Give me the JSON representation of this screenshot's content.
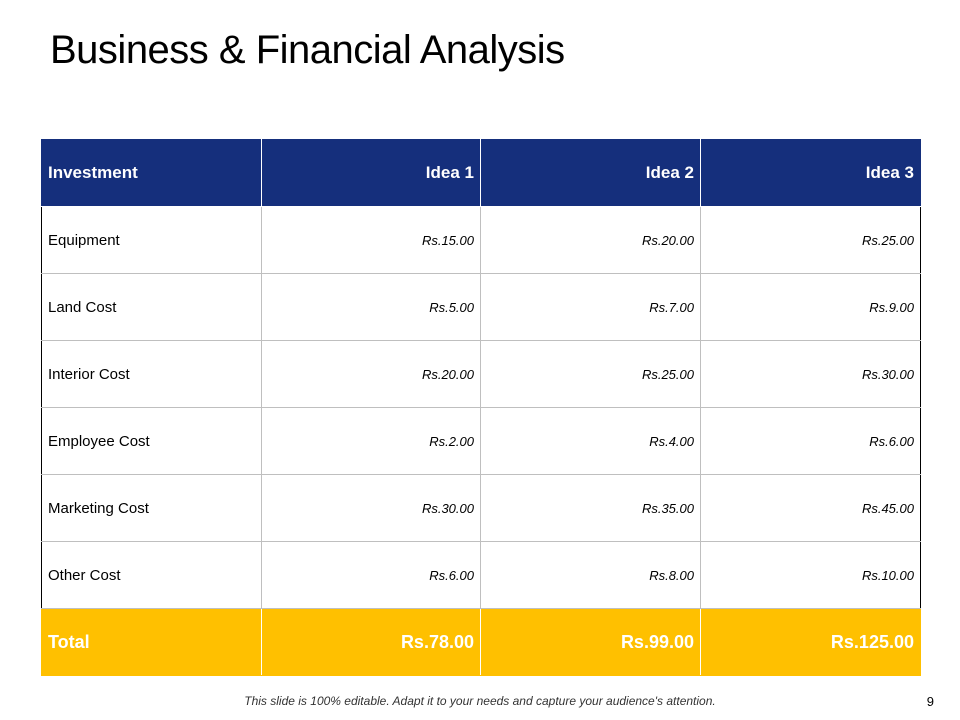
{
  "slide": {
    "title": "Business & Financial Analysis",
    "footer_note": "This slide is 100% editable. Adapt it to your needs and capture your audience's attention.",
    "page_number": "9"
  },
  "table": {
    "headers": [
      "Investment",
      "Idea 1",
      "Idea 2",
      "Idea 3"
    ],
    "rows": [
      {
        "label": "Equipment",
        "values": [
          "Rs.15.00",
          "Rs.20.00",
          "Rs.25.00"
        ]
      },
      {
        "label": "Land Cost",
        "values": [
          "Rs.5.00",
          "Rs.7.00",
          "Rs.9.00"
        ]
      },
      {
        "label": "Interior Cost",
        "values": [
          "Rs.20.00",
          "Rs.25.00",
          "Rs.30.00"
        ]
      },
      {
        "label": "Employee Cost",
        "values": [
          "Rs.2.00",
          "Rs.4.00",
          "Rs.6.00"
        ]
      },
      {
        "label": "Marketing Cost",
        "values": [
          "Rs.30.00",
          "Rs.35.00",
          "Rs.45.00"
        ]
      },
      {
        "label": "Other Cost",
        "values": [
          "Rs.6.00",
          "Rs.8.00",
          "Rs.10.00"
        ]
      }
    ],
    "total": {
      "label": "Total",
      "values": [
        "Rs.78.00",
        "Rs.99.00",
        "Rs.125.00"
      ]
    }
  },
  "colors": {
    "header_bg": "#152f7c",
    "total_bg": "#ffc000"
  }
}
